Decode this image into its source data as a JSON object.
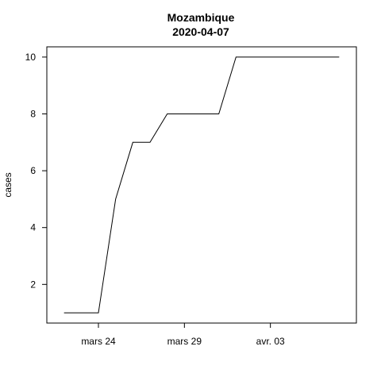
{
  "chart_data": {
    "type": "line",
    "title": "Mozambique",
    "subtitle": "2020-04-07",
    "xlabel": "",
    "ylabel": "cases",
    "x": [
      "2020-03-22",
      "2020-03-23",
      "2020-03-24",
      "2020-03-25",
      "2020-03-26",
      "2020-03-27",
      "2020-03-28",
      "2020-03-29",
      "2020-03-30",
      "2020-03-31",
      "2020-04-01",
      "2020-04-02",
      "2020-04-03",
      "2020-04-04",
      "2020-04-05",
      "2020-04-06",
      "2020-04-07"
    ],
    "series": [
      {
        "values": [
          1,
          1,
          1,
          5,
          7,
          7,
          8,
          8,
          8,
          8,
          10,
          10,
          10,
          10,
          10,
          10,
          10
        ]
      }
    ],
    "x_ticks": [
      {
        "date": "2020-03-24",
        "label": "mars 24"
      },
      {
        "date": "2020-03-29",
        "label": "mars 29"
      },
      {
        "date": "2020-04-03",
        "label": "avr. 03"
      }
    ],
    "y_ticks": [
      2,
      4,
      6,
      8,
      10
    ],
    "xlim": [
      "2020-03-21",
      "2020-04-08"
    ],
    "ylim": [
      0.64,
      10.36
    ],
    "grid": false,
    "legend": "none"
  }
}
